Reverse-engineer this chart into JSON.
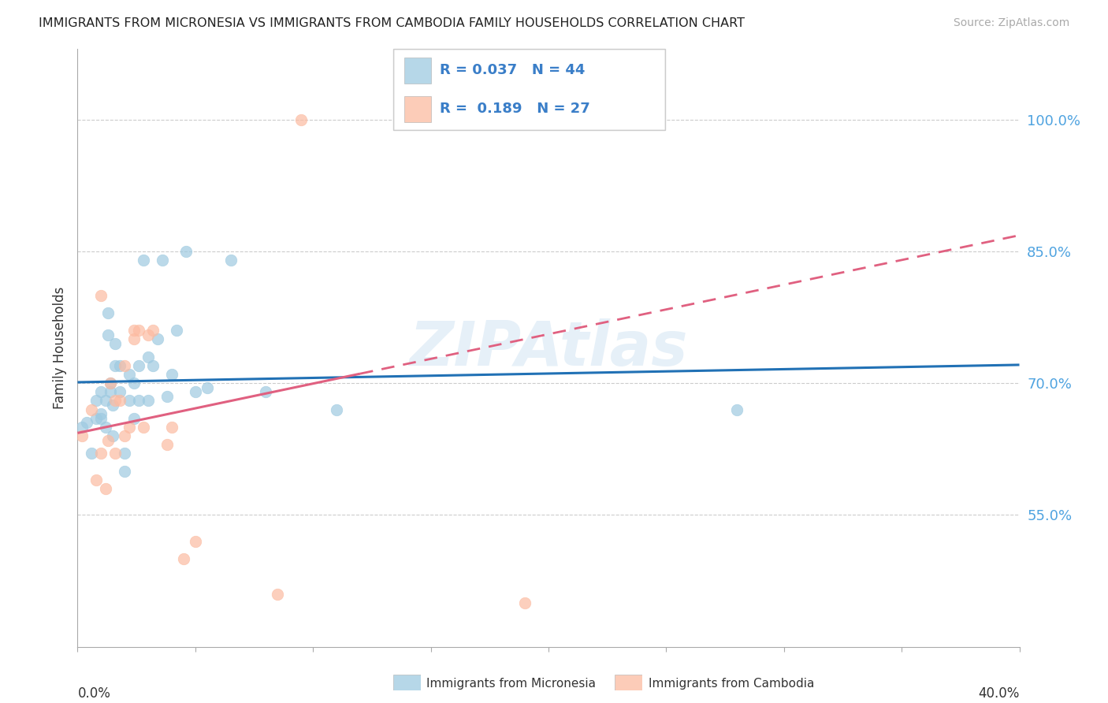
{
  "title": "IMMIGRANTS FROM MICRONESIA VS IMMIGRANTS FROM CAMBODIA FAMILY HOUSEHOLDS CORRELATION CHART",
  "source": "Source: ZipAtlas.com",
  "ylabel": "Family Households",
  "ytick_labels": [
    "55.0%",
    "70.0%",
    "85.0%",
    "100.0%"
  ],
  "ytick_values": [
    0.55,
    0.7,
    0.85,
    1.0
  ],
  "xtick_values": [
    0.0,
    0.05,
    0.1,
    0.15,
    0.2,
    0.25,
    0.3,
    0.35,
    0.4
  ],
  "xlim": [
    0.0,
    0.4
  ],
  "ylim": [
    0.4,
    1.08
  ],
  "micronesia_color": "#9ecae1",
  "cambodia_color": "#fcbba1",
  "micronesia_line_color": "#2171b5",
  "cambodia_line_color": "#cb181d",
  "R_micronesia": 0.037,
  "N_micronesia": 44,
  "R_cambodia": 0.189,
  "N_cambodia": 27,
  "micronesia_x": [
    0.002,
    0.004,
    0.006,
    0.008,
    0.008,
    0.01,
    0.01,
    0.01,
    0.012,
    0.012,
    0.013,
    0.013,
    0.014,
    0.014,
    0.015,
    0.015,
    0.016,
    0.016,
    0.018,
    0.018,
    0.02,
    0.02,
    0.022,
    0.022,
    0.024,
    0.024,
    0.026,
    0.026,
    0.028,
    0.03,
    0.03,
    0.032,
    0.034,
    0.036,
    0.038,
    0.04,
    0.042,
    0.046,
    0.05,
    0.055,
    0.065,
    0.08,
    0.11,
    0.28
  ],
  "micronesia_y": [
    0.65,
    0.655,
    0.62,
    0.66,
    0.68,
    0.665,
    0.69,
    0.66,
    0.65,
    0.68,
    0.755,
    0.78,
    0.69,
    0.7,
    0.64,
    0.675,
    0.72,
    0.745,
    0.69,
    0.72,
    0.6,
    0.62,
    0.68,
    0.71,
    0.66,
    0.7,
    0.68,
    0.72,
    0.84,
    0.68,
    0.73,
    0.72,
    0.75,
    0.84,
    0.685,
    0.71,
    0.76,
    0.85,
    0.69,
    0.695,
    0.84,
    0.69,
    0.67,
    0.67
  ],
  "cambodia_x": [
    0.002,
    0.006,
    0.008,
    0.01,
    0.01,
    0.012,
    0.013,
    0.014,
    0.016,
    0.016,
    0.018,
    0.02,
    0.02,
    0.022,
    0.024,
    0.024,
    0.026,
    0.028,
    0.03,
    0.032,
    0.038,
    0.04,
    0.045,
    0.05,
    0.085,
    0.095,
    0.19
  ],
  "cambodia_y": [
    0.64,
    0.67,
    0.59,
    0.62,
    0.8,
    0.58,
    0.635,
    0.7,
    0.68,
    0.62,
    0.68,
    0.64,
    0.72,
    0.65,
    0.75,
    0.76,
    0.76,
    0.65,
    0.755,
    0.76,
    0.63,
    0.65,
    0.5,
    0.52,
    0.46,
    1.0,
    0.45
  ],
  "watermark": "ZIPAtlas",
  "grid_color": "#cccccc",
  "legend_label_mic": "R = 0.037   N = 44",
  "legend_label_cam": "R =  0.189   N = 27"
}
